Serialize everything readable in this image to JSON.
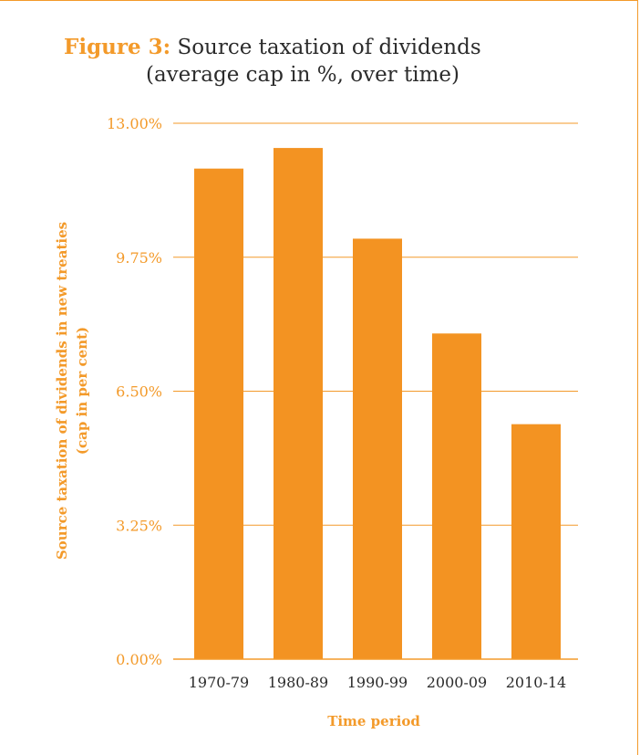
{
  "figure": {
    "label": "Figure 3:",
    "title_line1": "Source taxation of dividends",
    "title_line2": "(average cap in %, over time)"
  },
  "colors": {
    "accent": "#F39A2A",
    "bar": "#F39322",
    "text": "#2b2b2b",
    "axis_text": "#F39A2A"
  },
  "chart_data": {
    "type": "bar",
    "categories": [
      "1970-79",
      "1980-89",
      "1990-99",
      "2000-09",
      "2010-14"
    ],
    "values": [
      11.9,
      12.4,
      10.2,
      7.9,
      5.7
    ],
    "ylabel_line1": "Source taxation of dividends in new treaties",
    "ylabel_line2": "(cap in per cent)",
    "xlabel": "Time period",
    "ylim": [
      0,
      13
    ],
    "yticks": [
      0,
      3.25,
      6.5,
      9.75,
      13
    ],
    "ytick_labels": [
      "0.00%",
      "3.25%",
      "6.50%",
      "9.75%",
      "13.00%"
    ],
    "grid": true
  }
}
